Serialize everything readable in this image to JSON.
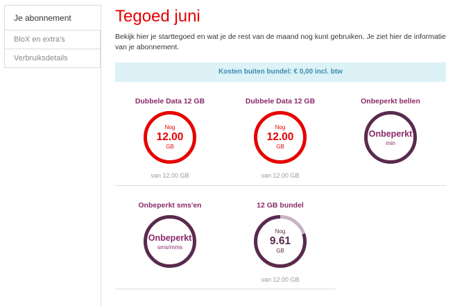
{
  "sidebar": {
    "items": [
      {
        "label": "Je abonnement",
        "active": true
      },
      {
        "label": "BloX en extra's",
        "active": false
      },
      {
        "label": "Verbruiksdetails",
        "active": false
      }
    ]
  },
  "main": {
    "title": "Tegoed juni",
    "intro": "Bekijk hier je starttegoed en wat je de rest van de maand nog kunt gebruiken. Je ziet hier de informatie van je abonnement.",
    "banner": "Kosten buiten bundel: € 0,00 incl. btw"
  },
  "colors": {
    "red": "#e60000",
    "plum": "#5a2a4e",
    "plum_light": "#c9b3c2",
    "purple_text": "#8a2a6a"
  },
  "cards": [
    {
      "title": "Dubbele Data 12 GB",
      "nog": "Nog",
      "value": "12.00",
      "unit": "GB",
      "sub": "van 12.00 GB",
      "fraction": 1.0,
      "style": "red"
    },
    {
      "title": "Dubbele Data 12 GB",
      "nog": "Nog",
      "value": "12.00",
      "unit": "GB",
      "sub": "van 12.00 GB",
      "fraction": 1.0,
      "style": "red"
    },
    {
      "title": "Onbeperkt bellen",
      "word": "Onbeperkt",
      "unit": "min",
      "fraction": 1.0,
      "style": "plum"
    },
    {
      "title": "Onbeperkt sms'en",
      "word": "Onbeperkt",
      "unit": "sms/mms",
      "fraction": 1.0,
      "style": "plum"
    },
    {
      "title": "12 GB bundel",
      "nog": "Nog",
      "value": "9.61",
      "unit": "GB",
      "sub": "van 12.00 GB",
      "fraction": 0.8,
      "style": "plum-partial"
    }
  ]
}
